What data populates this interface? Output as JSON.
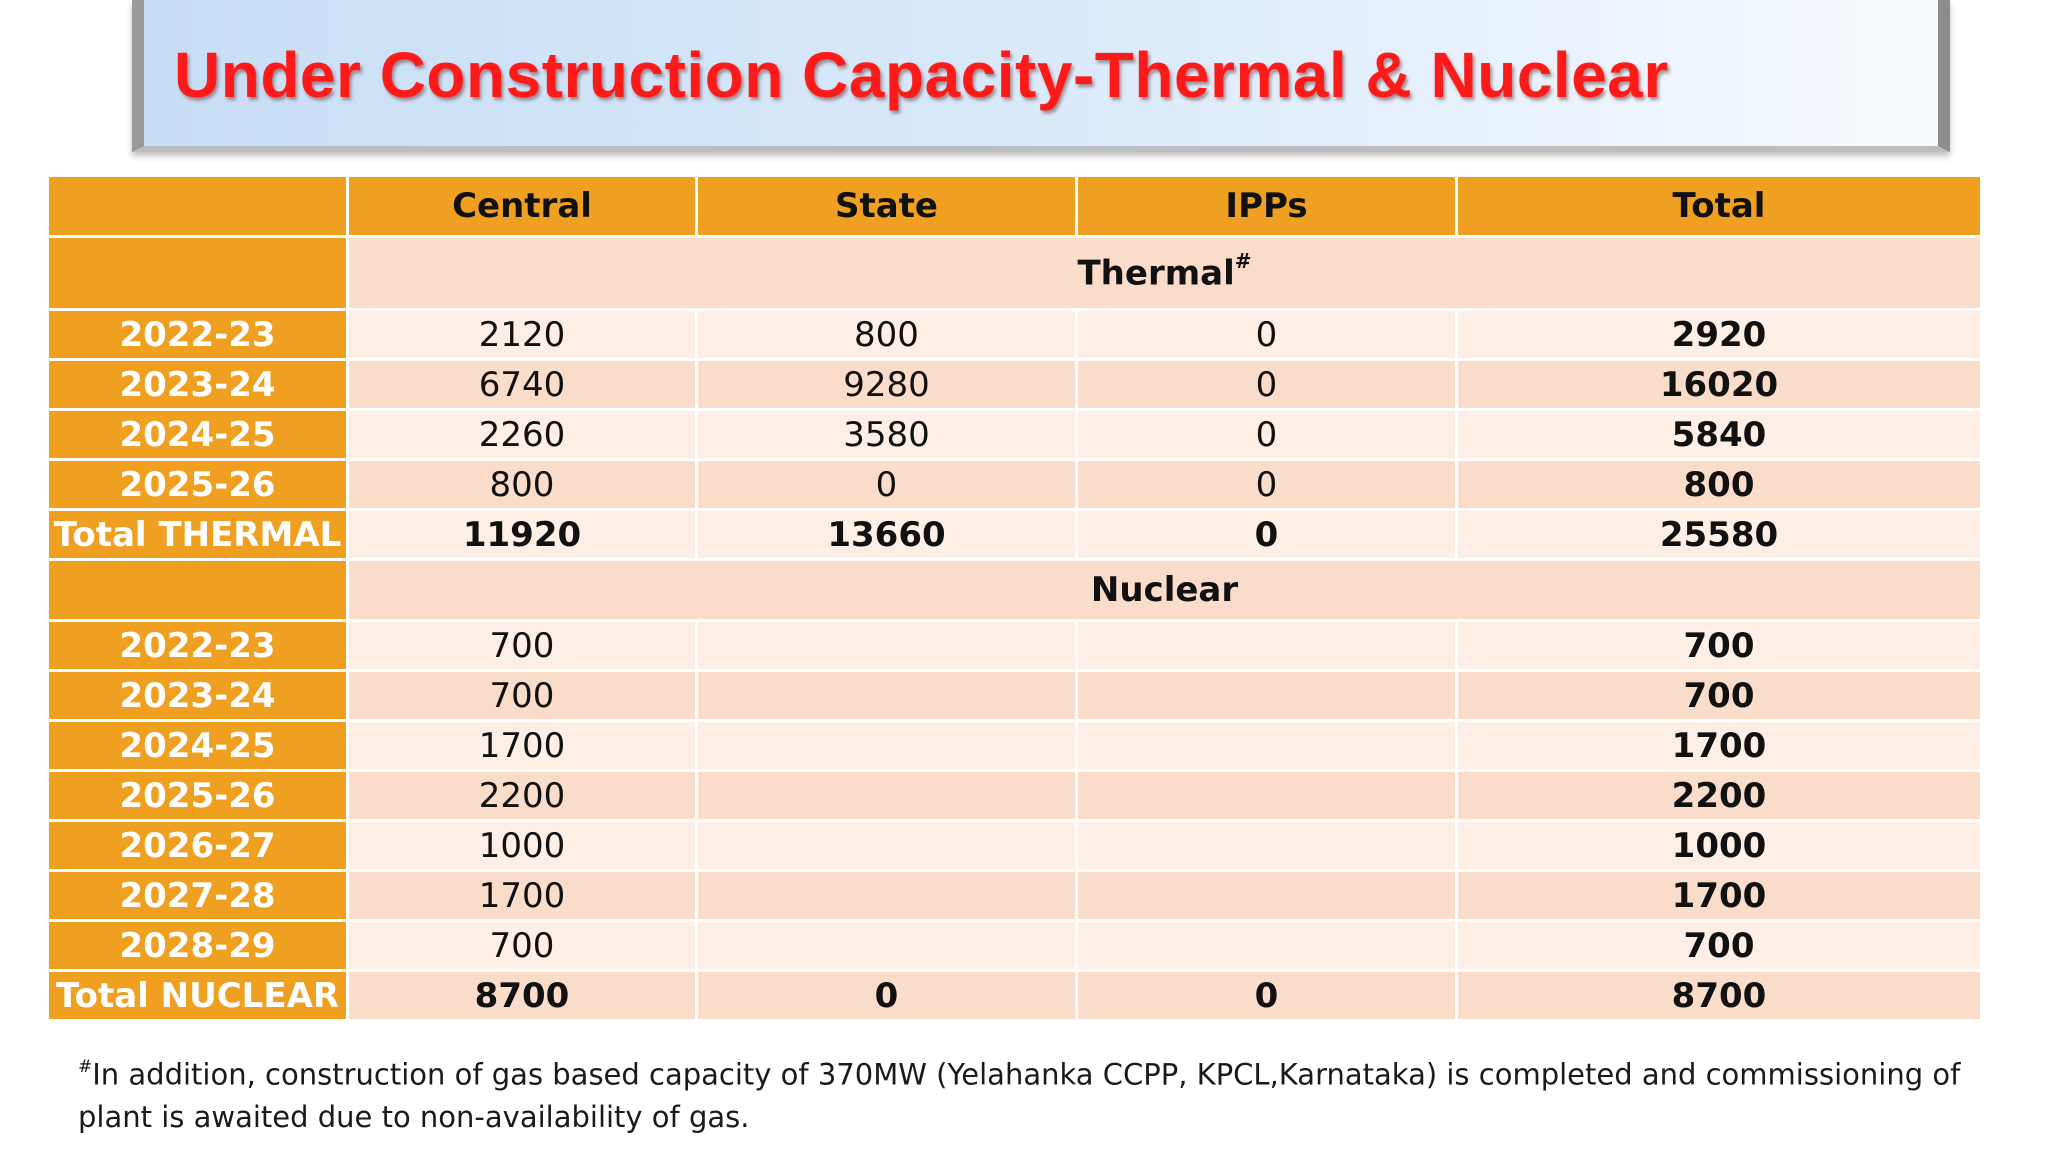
{
  "title": "Under Construction Capacity-Thermal & Nuclear",
  "table": {
    "columns": [
      "",
      "Central",
      "State",
      "IPPs",
      "Total"
    ],
    "thermal": {
      "section_label": "Thermal",
      "section_mark": "#",
      "rows": [
        {
          "year": "2022-23",
          "central": "2120",
          "state": "800",
          "ipps": "0",
          "total": "2920"
        },
        {
          "year": "2023-24",
          "central": "6740",
          "state": "9280",
          "ipps": "0",
          "total": "16020"
        },
        {
          "year": "2024-25",
          "central": "2260",
          "state": "3580",
          "ipps": "0",
          "total": "5840"
        },
        {
          "year": "2025-26",
          "central": "800",
          "state": "0",
          "ipps": "0",
          "total": "800"
        }
      ],
      "total_row": {
        "label": "Total THERMAL",
        "central": "11920",
        "state": "13660",
        "ipps": "0",
        "total": "25580"
      }
    },
    "nuclear": {
      "section_label": "Nuclear",
      "rows": [
        {
          "year": "2022-23",
          "central": "700",
          "state": "",
          "ipps": "",
          "total": "700"
        },
        {
          "year": "2023-24",
          "central": "700",
          "state": "",
          "ipps": "",
          "total": "700"
        },
        {
          "year": "2024-25",
          "central": "1700",
          "state": "",
          "ipps": "",
          "total": "1700"
        },
        {
          "year": "2025-26",
          "central": "2200",
          "state": "",
          "ipps": "",
          "total": "2200"
        },
        {
          "year": "2026-27",
          "central": "1000",
          "state": "",
          "ipps": "",
          "total": "1000"
        },
        {
          "year": "2027-28",
          "central": "1700",
          "state": "",
          "ipps": "",
          "total": "1700"
        },
        {
          "year": "2028-29",
          "central": "700",
          "state": "",
          "ipps": "",
          "total": "700"
        }
      ],
      "total_row": {
        "label": "Total NUCLEAR",
        "central": "8700",
        "state": "0",
        "ipps": "0",
        "total": "8700"
      }
    }
  },
  "footnote": {
    "mark": "#",
    "text": "In addition, construction of gas based capacity of 370MW (Yelahanka CCPP, KPCL,Karnataka) is completed and commissioning of plant is awaited due to non-availability of gas."
  },
  "colors": {
    "title": "#ff1a1a",
    "header_orange": "#f0a020",
    "row_light": "#fdeee6",
    "row_dark": "#fadccb"
  }
}
